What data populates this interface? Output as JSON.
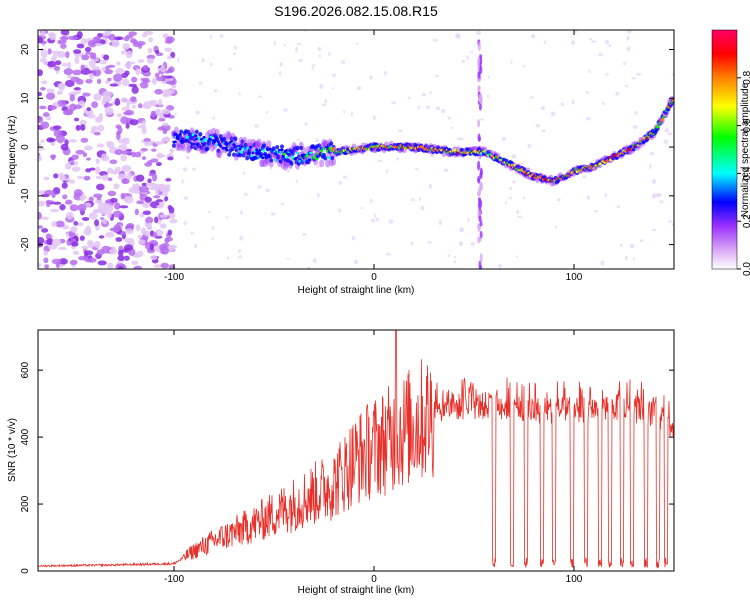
{
  "title": "S196.2026.082.15.08.R15",
  "colors": {
    "snr_line": "#e8302a",
    "spectrogram_bg": "#ffffff"
  },
  "chart_data": [
    {
      "type": "heatmap",
      "name": "spectrogram",
      "xlabel": "Height of straight line (km)",
      "ylabel": "Frequency (Hz)",
      "xlim": [
        -168,
        150
      ],
      "ylim": [
        -25,
        24
      ],
      "x_ticks": [
        -100,
        0,
        100
      ],
      "y_ticks": [
        -20,
        -10,
        0,
        10,
        20
      ],
      "colorbar": {
        "label": "Normalized spectral amplitude",
        "range": [
          0.0,
          1.0
        ],
        "ticks": [
          0.0,
          0.2,
          0.4,
          0.6,
          0.8
        ],
        "colormap": [
          "#ffffff",
          "#d9a7f5",
          "#9b30ff",
          "#0000ff",
          "#00ffff",
          "#00ff00",
          "#ffff00",
          "#ff8000",
          "#ff0000",
          "#ff0066"
        ]
      },
      "ridge": {
        "x": [
          -100,
          -80,
          -60,
          -40,
          -20,
          0,
          20,
          40,
          55,
          60,
          70,
          80,
          90,
          100,
          110,
          120,
          130,
          140,
          150
        ],
        "freq": [
          2,
          1,
          -1,
          -2,
          -1,
          0,
          0,
          -1,
          -1,
          -2,
          -4,
          -6,
          -7,
          -5,
          -4,
          -2,
          0,
          3,
          10
        ],
        "amplitude": [
          0.3,
          0.35,
          0.35,
          0.4,
          0.6,
          0.7,
          0.75,
          0.7,
          0.6,
          0.65,
          0.7,
          0.8,
          0.75,
          0.7,
          0.7,
          0.75,
          0.75,
          0.7,
          0.65
        ]
      },
      "noise_region_x": [
        -168,
        -100
      ],
      "vertical_artifact_x": 53
    },
    {
      "type": "line",
      "name": "snr",
      "xlabel": "Height of straight line (km)",
      "ylabel": "SNR (10 * v/v)",
      "xlim": [
        -168,
        150
      ],
      "ylim": [
        0,
        720
      ],
      "x_ticks": [
        -100,
        0,
        100
      ],
      "y_ticks": [
        0,
        200,
        400,
        600
      ],
      "envelope": {
        "x": [
          -168,
          -130,
          -100,
          -90,
          -80,
          -60,
          -40,
          -20,
          -10,
          0,
          10,
          20,
          30,
          40,
          60,
          80,
          100,
          120,
          140,
          150
        ],
        "value": [
          15,
          18,
          22,
          60,
          90,
          140,
          200,
          260,
          330,
          370,
          400,
          440,
          470,
          490,
          495,
          480,
          480,
          490,
          470,
          420
        ]
      },
      "spike": {
        "x": 11,
        "value": 720
      },
      "dropouts_x": [
        60,
        69,
        76,
        84,
        90,
        99,
        106,
        113,
        118,
        124,
        129,
        136,
        142,
        146
      ]
    }
  ]
}
